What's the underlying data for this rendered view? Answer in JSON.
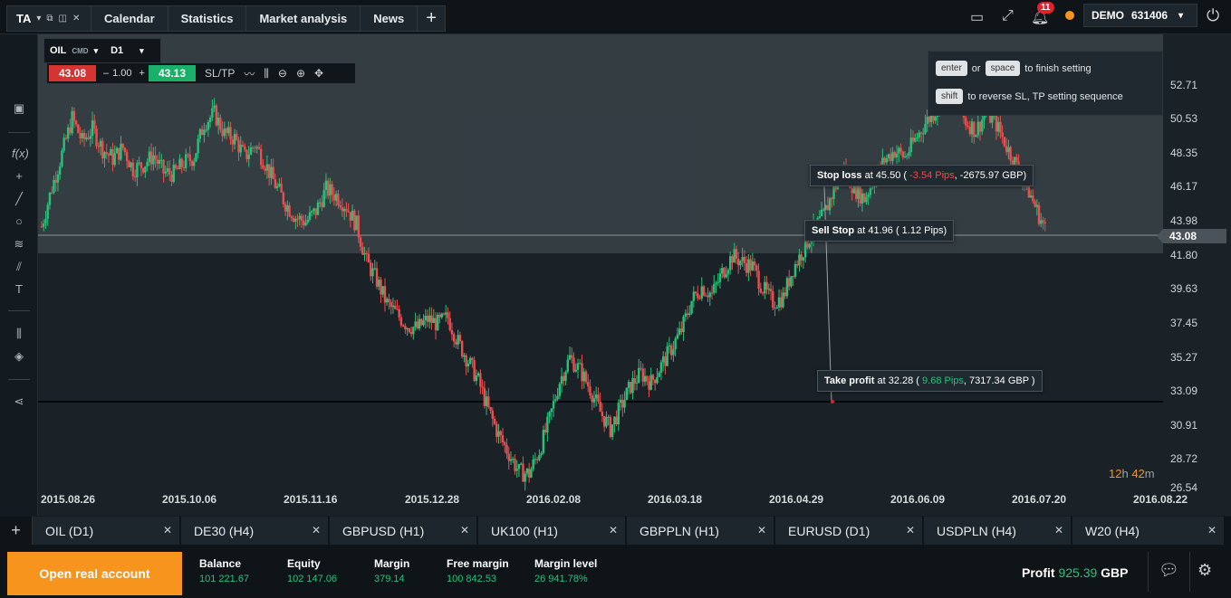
{
  "top": {
    "ta_label": "TA",
    "tabs": [
      "Calendar",
      "Statistics",
      "Market analysis",
      "News"
    ],
    "notifications": "11",
    "account_mode": "DEMO",
    "account_id": "631406"
  },
  "instrument": {
    "symbol": "OIL",
    "type": "CMD",
    "timeframe": "D1",
    "sell": "43.08",
    "volume": "1.00",
    "buy": "43.13",
    "sltp_label": "SL/TP"
  },
  "hint": {
    "enter": "enter",
    "or": "or",
    "space": "space",
    "finish": "to finish setting",
    "shift": "shift",
    "reverse": "to reverse SL, TP setting sequence"
  },
  "orders": {
    "stop_loss_label": "Stop loss",
    "stop_loss_at": "at 45.50 (",
    "stop_loss_pips": "-3.54 Pips",
    "stop_loss_gbp": ", -2675.97 GBP)",
    "sell_stop_label": "Sell Stop",
    "sell_stop_at": "at 41.96 ( 1.12 Pips)",
    "take_profit_label": "Take profit",
    "take_profit_at": "at 32.28 (",
    "take_profit_pips": "9.68 Pips",
    "take_profit_gbp": ", 7317.34 GBP )"
  },
  "price_axis": [
    "52.71",
    "50.53",
    "48.35",
    "46.17",
    "43.98",
    "41.80",
    "39.63",
    "37.45",
    "35.27",
    "33.09",
    "30.91",
    "28.72",
    "26.54"
  ],
  "current_price": "43.08",
  "date_axis": [
    "2015.08.26",
    "2015.10.06",
    "2015.11.16",
    "2015.12.28",
    "2016.02.08",
    "2016.03.18",
    "2016.04.29",
    "2016.06.09",
    "2016.07.20",
    "2016.08.22"
  ],
  "timer": {
    "hours": "12",
    "h": "h",
    "minutes": "42",
    "m": "m"
  },
  "bottom_tabs": [
    "OIL (D1)",
    "DE30 (H4)",
    "GBPUSD (H1)",
    "UK100 (H1)",
    "GBPPLN (H1)",
    "EURUSD (D1)",
    "USDPLN (H4)",
    "W20 (H4)"
  ],
  "footer": {
    "open_real": "Open real account",
    "balance_label": "Balance",
    "balance": "101 221.67",
    "equity_label": "Equity",
    "equity": "102 147.06",
    "margin_label": "Margin",
    "margin": "379.14",
    "free_margin_label": "Free margin",
    "free_margin": "100 842.53",
    "margin_level_label": "Margin level",
    "margin_level": "26 941.78%",
    "profit_label": "Profit",
    "profit": "925.39",
    "currency": "GBP"
  },
  "chart_data": {
    "type": "candlestick",
    "symbol": "OIL",
    "timeframe": "D1",
    "ylim": [
      26.54,
      52.71
    ],
    "closes": [
      43.5,
      46.0,
      48.2,
      50.5,
      49.0,
      49.8,
      48.5,
      47.9,
      48.6,
      47.2,
      47.5,
      48.1,
      47.0,
      46.9,
      47.6,
      48.0,
      50.2,
      50.8,
      49.5,
      49.2,
      48.0,
      48.8,
      47.6,
      46.2,
      45.0,
      44.1,
      43.8,
      44.5,
      45.9,
      45.5,
      44.8,
      43.6,
      41.2,
      40.0,
      38.5,
      37.8,
      37.1,
      36.9,
      37.5,
      37.2,
      37.6,
      36.0,
      34.8,
      33.5,
      31.6,
      30.0,
      28.8,
      27.6,
      27.5,
      29.0,
      31.0,
      33.5,
      35.0,
      34.2,
      33.0,
      31.5,
      30.4,
      31.8,
      33.2,
      34.0,
      33.4,
      34.5,
      35.6,
      36.8,
      38.7,
      39.6,
      39.1,
      40.5,
      41.6,
      41.2,
      40.9,
      39.5,
      38.6,
      38.9,
      40.8,
      42.0,
      43.3,
      44.2,
      45.9,
      47.1,
      46.0,
      45.3,
      46.6,
      47.8,
      48.4,
      48.0,
      49.1,
      50.2,
      51.0,
      52.3,
      51.5,
      50.3,
      49.7,
      50.9,
      50.1,
      48.7,
      47.4,
      46.1,
      44.5,
      43.08
    ]
  }
}
